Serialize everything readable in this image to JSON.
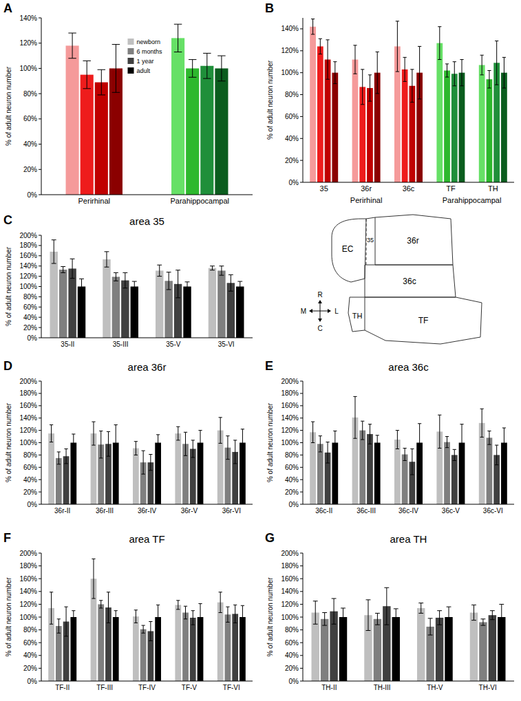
{
  "chart_data": [
    {
      "type": "bar",
      "panel_label": "A",
      "y_label": "% of adult neuron number",
      "categories": [
        "Perirhinal",
        "Parahippocampal"
      ],
      "series": [
        {
          "name": "newborn",
          "color": "#c0c0c0",
          "colors": [
            "#f59a9a",
            "#66e066"
          ],
          "values": [
            118,
            124
          ],
          "errors": [
            10,
            11
          ]
        },
        {
          "name": "6 months",
          "color": "#808080",
          "colors": [
            "#ee1c1c",
            "#2db82d"
          ],
          "values": [
            95,
            100
          ],
          "errors": [
            11,
            7
          ]
        },
        {
          "name": "1 year",
          "color": "#404040",
          "colors": [
            "#c00000",
            "#1f8f3a"
          ],
          "values": [
            89,
            102
          ],
          "errors": [
            10,
            10
          ]
        },
        {
          "name": "adult",
          "color": "#000000",
          "colors": [
            "#8b0000",
            "#0b5d1e"
          ],
          "values": [
            100,
            100
          ],
          "errors": [
            19,
            10
          ]
        }
      ],
      "ylim": [
        0,
        140
      ],
      "yticks": [
        {
          "value": 0,
          "label": "0%"
        },
        {
          "value": 20,
          "label": "20%"
        },
        {
          "value": 40,
          "label": "40%"
        },
        {
          "value": 60,
          "label": "60%"
        },
        {
          "value": 80,
          "label": "80%"
        },
        {
          "value": 100,
          "label": "100%"
        },
        {
          "value": 120,
          "label": "120%"
        },
        {
          "value": 140,
          "label": "140%"
        }
      ],
      "grid": false,
      "legend": "top"
    },
    {
      "type": "bar",
      "panel_label": "B",
      "y_label": "% of adult neuron number",
      "categories": [
        "35",
        "36r",
        "36c",
        "TF",
        "TH"
      ],
      "group_labels": [
        "Perirhinal",
        "Perirhinal",
        "Perirhinal",
        "Parahippocampal",
        "Parahippocampal"
      ],
      "series": [
        {
          "color": "#c0c0c0",
          "colors": [
            "#f59a9a",
            "#f59a9a",
            "#f59a9a",
            "#66e066",
            "#66e066"
          ],
          "values": [
            142,
            112,
            124,
            127,
            107
          ],
          "errors": [
            7,
            13,
            23,
            15,
            9
          ]
        },
        {
          "color": "#808080",
          "colors": [
            "#ee1c1c",
            "#ee1c1c",
            "#ee1c1c",
            "#2db82d",
            "#2db82d"
          ],
          "values": [
            124,
            87,
            103,
            102,
            94
          ],
          "errors": [
            7,
            16,
            11,
            6,
            8
          ]
        },
        {
          "color": "#404040",
          "colors": [
            "#c00000",
            "#c00000",
            "#c00000",
            "#1f8f3a",
            "#1f8f3a"
          ],
          "values": [
            112,
            86,
            88,
            99,
            109
          ],
          "errors": [
            18,
            12,
            15,
            11,
            20
          ]
        },
        {
          "color": "#000000",
          "colors": [
            "#8b0000",
            "#8b0000",
            "#8b0000",
            "#0b5d1e",
            "#0b5d1e"
          ],
          "values": [
            100,
            100,
            100,
            100,
            100
          ],
          "errors": [
            10,
            19,
            24,
            12,
            14
          ]
        }
      ],
      "ylim": [
        0,
        150
      ],
      "yticks": [
        {
          "value": 0,
          "label": "0%"
        },
        {
          "value": 20,
          "label": "20%"
        },
        {
          "value": 40,
          "label": "40%"
        },
        {
          "value": 60,
          "label": "60%"
        },
        {
          "value": 80,
          "label": "80%"
        },
        {
          "value": 100,
          "label": "100%"
        },
        {
          "value": 120,
          "label": "120%"
        },
        {
          "value": 140,
          "label": "140%"
        }
      ],
      "grid": false
    },
    {
      "type": "bar",
      "panel_label": "C",
      "title": "area 35",
      "y_label": "% of adult neuron number",
      "categories": [
        "35-II",
        "35-III",
        "35-V",
        "35-VI"
      ],
      "series": [
        {
          "color": "#bfbfbf",
          "values": [
            168,
            153,
            131,
            136
          ],
          "errors": [
            23,
            15,
            11,
            4
          ]
        },
        {
          "color": "#7f7f7f",
          "values": [
            133,
            119,
            111,
            131
          ],
          "errors": [
            6,
            8,
            17,
            9
          ]
        },
        {
          "color": "#404040",
          "values": [
            135,
            112,
            105,
            107
          ],
          "errors": [
            19,
            15,
            27,
            16
          ]
        },
        {
          "color": "#000000",
          "values": [
            100,
            100,
            100,
            100
          ],
          "errors": [
            15,
            10,
            9,
            10
          ]
        }
      ],
      "ylim": [
        0,
        200
      ],
      "yticks": [
        {
          "value": 0,
          "label": "0%"
        },
        {
          "value": 20,
          "label": "20%"
        },
        {
          "value": 40,
          "label": "40%"
        },
        {
          "value": 60,
          "label": "60%"
        },
        {
          "value": 80,
          "label": "80%"
        },
        {
          "value": 100,
          "label": "100%"
        },
        {
          "value": 120,
          "label": "120%"
        },
        {
          "value": 140,
          "label": "140%"
        },
        {
          "value": 160,
          "label": "160%"
        },
        {
          "value": 180,
          "label": "180%"
        },
        {
          "value": 200,
          "label": "200%"
        }
      ],
      "grid": false
    },
    {
      "type": "bar",
      "panel_label": "D",
      "title": "area 36r",
      "y_label": "% of adult neuron number",
      "categories": [
        "36r-II",
        "36r-III",
        "36r-IV",
        "36r-V",
        "36r-VI"
      ],
      "series": [
        {
          "color": "#bfbfbf",
          "values": [
            115,
            115,
            91,
            115,
            120
          ],
          "errors": [
            14,
            19,
            11,
            11,
            21
          ]
        },
        {
          "color": "#7f7f7f",
          "values": [
            75,
            97,
            68,
            98,
            92
          ],
          "errors": [
            10,
            22,
            19,
            19,
            19
          ]
        },
        {
          "color": "#404040",
          "values": [
            78,
            98,
            68,
            90,
            85
          ],
          "errors": [
            12,
            20,
            13,
            14,
            19
          ]
        },
        {
          "color": "#000000",
          "values": [
            100,
            100,
            100,
            100,
            100
          ],
          "errors": [
            14,
            29,
            13,
            20,
            22
          ]
        }
      ],
      "ylim": [
        0,
        200
      ],
      "yticks": [
        {
          "value": 0,
          "label": "0%"
        },
        {
          "value": 20,
          "label": "20%"
        },
        {
          "value": 40,
          "label": "40%"
        },
        {
          "value": 60,
          "label": "60%"
        },
        {
          "value": 80,
          "label": "80%"
        },
        {
          "value": 100,
          "label": "100%"
        },
        {
          "value": 120,
          "label": "120%"
        },
        {
          "value": 140,
          "label": "140%"
        },
        {
          "value": 160,
          "label": "160%"
        },
        {
          "value": 180,
          "label": "180%"
        },
        {
          "value": 200,
          "label": "200%"
        }
      ],
      "grid": false
    },
    {
      "type": "bar",
      "panel_label": "E",
      "title": "area 36c",
      "y_label": "% of adult neuron number",
      "categories": [
        "36c-II",
        "36c-III",
        "36c-IV",
        "36c-V",
        "36c-VI"
      ],
      "series": [
        {
          "color": "#bfbfbf",
          "values": [
            117,
            141,
            105,
            118,
            132
          ],
          "errors": [
            17,
            34,
            15,
            27,
            23
          ]
        },
        {
          "color": "#7f7f7f",
          "values": [
            98,
            120,
            81,
            101,
            108
          ],
          "errors": [
            13,
            15,
            10,
            9,
            11
          ]
        },
        {
          "color": "#404040",
          "values": [
            84,
            114,
            69,
            80,
            80
          ],
          "errors": [
            17,
            16,
            21,
            9,
            16
          ]
        },
        {
          "color": "#000000",
          "values": [
            100,
            100,
            100,
            100,
            100
          ],
          "errors": [
            19,
            12,
            31,
            30,
            24
          ]
        }
      ],
      "ylim": [
        0,
        200
      ],
      "yticks": [
        {
          "value": 0,
          "label": "0%"
        },
        {
          "value": 20,
          "label": "20%"
        },
        {
          "value": 40,
          "label": "40%"
        },
        {
          "value": 60,
          "label": "60%"
        },
        {
          "value": 80,
          "label": "80%"
        },
        {
          "value": 100,
          "label": "100%"
        },
        {
          "value": 120,
          "label": "120%"
        },
        {
          "value": 140,
          "label": "140%"
        },
        {
          "value": 160,
          "label": "160%"
        },
        {
          "value": 180,
          "label": "180%"
        },
        {
          "value": 200,
          "label": "200%"
        }
      ],
      "grid": false
    },
    {
      "type": "bar",
      "panel_label": "F",
      "title": "area TF",
      "y_label": "% of adult neuron number",
      "categories": [
        "TF-II",
        "TF-III",
        "TF-IV",
        "TF-V",
        "TF-VI"
      ],
      "series": [
        {
          "color": "#bfbfbf",
          "values": [
            114,
            160,
            101,
            119,
            123
          ],
          "errors": [
            25,
            31,
            10,
            7,
            16
          ]
        },
        {
          "color": "#7f7f7f",
          "values": [
            86,
            120,
            81,
            107,
            104
          ],
          "errors": [
            11,
            6,
            6,
            10,
            12
          ]
        },
        {
          "color": "#404040",
          "values": [
            93,
            115,
            78,
            99,
            105
          ],
          "errors": [
            23,
            24,
            15,
            11,
            14
          ]
        },
        {
          "color": "#000000",
          "values": [
            100,
            100,
            100,
            100,
            100
          ],
          "errors": [
            10,
            10,
            19,
            21,
            18
          ]
        }
      ],
      "ylim": [
        0,
        200
      ],
      "yticks": [
        {
          "value": 0,
          "label": "0%"
        },
        {
          "value": 20,
          "label": "20%"
        },
        {
          "value": 40,
          "label": "40%"
        },
        {
          "value": 60,
          "label": "60%"
        },
        {
          "value": 80,
          "label": "80%"
        },
        {
          "value": 100,
          "label": "100%"
        },
        {
          "value": 120,
          "label": "120%"
        },
        {
          "value": 140,
          "label": "140%"
        },
        {
          "value": 160,
          "label": "160%"
        },
        {
          "value": 180,
          "label": "180%"
        },
        {
          "value": 200,
          "label": "200%"
        }
      ],
      "grid": false
    },
    {
      "type": "bar",
      "panel_label": "G",
      "title": "area TH",
      "y_label": "% of adult neuron number",
      "categories": [
        "TH-II",
        "TH-III",
        "TH-V",
        "TH-VI"
      ],
      "series": [
        {
          "color": "#bfbfbf",
          "values": [
            107,
            103,
            114,
            107
          ],
          "errors": [
            18,
            24,
            8,
            12
          ]
        },
        {
          "color": "#7f7f7f",
          "values": [
            97,
            97,
            85,
            92
          ],
          "errors": [
            10,
            9,
            13,
            5
          ]
        },
        {
          "color": "#404040",
          "values": [
            109,
            117,
            99,
            103
          ],
          "errors": [
            20,
            29,
            11,
            7
          ]
        },
        {
          "color": "#000000",
          "values": [
            100,
            100,
            100,
            100
          ],
          "errors": [
            14,
            13,
            16,
            20
          ]
        }
      ],
      "ylim": [
        0,
        200
      ],
      "yticks": [
        {
          "value": 0,
          "label": "0%"
        },
        {
          "value": 20,
          "label": "20%"
        },
        {
          "value": 40,
          "label": "40%"
        },
        {
          "value": 60,
          "label": "60%"
        },
        {
          "value": 80,
          "label": "80%"
        },
        {
          "value": 100,
          "label": "100%"
        },
        {
          "value": 120,
          "label": "120%"
        },
        {
          "value": 140,
          "label": "140%"
        },
        {
          "value": 160,
          "label": "160%"
        },
        {
          "value": 180,
          "label": "180%"
        },
        {
          "value": 200,
          "label": "200%"
        }
      ],
      "grid": false
    }
  ],
  "diagram": {
    "regions": [
      "EC",
      "35",
      "36r",
      "36c",
      "TH",
      "TF"
    ],
    "compass": [
      "R",
      "C",
      "M",
      "L"
    ]
  }
}
